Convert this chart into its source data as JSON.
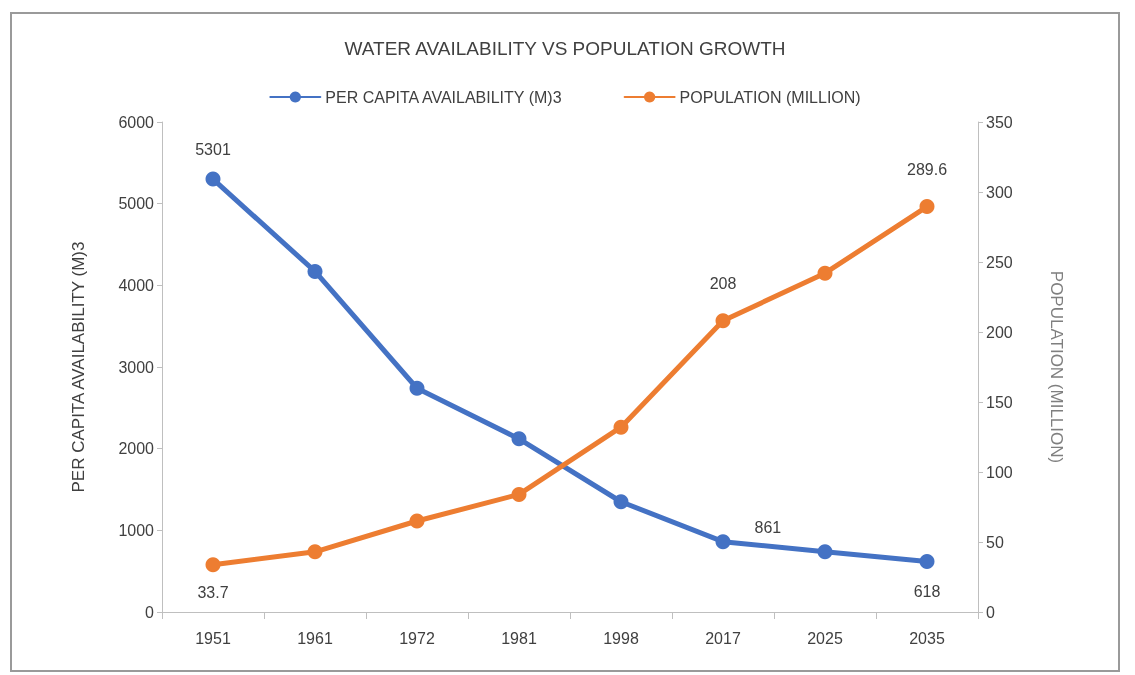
{
  "chart_data": {
    "type": "line",
    "title": "WATER AVAILABILITY VS POPULATION GROWTH",
    "ylabel": "PER CAPITA AVAILABILITY (M)3",
    "y2label": "POPULATION (MILLION)",
    "categories": [
      "1951",
      "1961",
      "1972",
      "1981",
      "1998",
      "2017",
      "2025",
      "2035"
    ],
    "series": [
      {
        "name": "PER CAPITA AVAILABILITY (M)3",
        "color": "#4472c4",
        "values": [
          5301,
          4170,
          2740,
          2120,
          1350,
          861,
          737,
          618
        ],
        "value_labels": [
          "5301",
          null,
          null,
          null,
          null,
          "861",
          null,
          "618"
        ]
      },
      {
        "name": "POPULATION (MILLION)",
        "color": "#ed7d31",
        "axis": "y2",
        "values": [
          33.7,
          43,
          65,
          84,
          132,
          208,
          242,
          289.6
        ],
        "value_labels": [
          "33.7",
          null,
          null,
          null,
          null,
          "208",
          null,
          "289.6"
        ]
      }
    ],
    "ylim": [
      0,
      6000
    ],
    "yticks": [
      0,
      1000,
      2000,
      3000,
      4000,
      5000,
      6000
    ],
    "y2lim": [
      0,
      350
    ],
    "y2ticks": [
      0,
      50,
      100,
      150,
      200,
      250,
      300,
      350
    ],
    "grid": false,
    "legend": "top",
    "marker": "circle",
    "line_style": "solid"
  }
}
